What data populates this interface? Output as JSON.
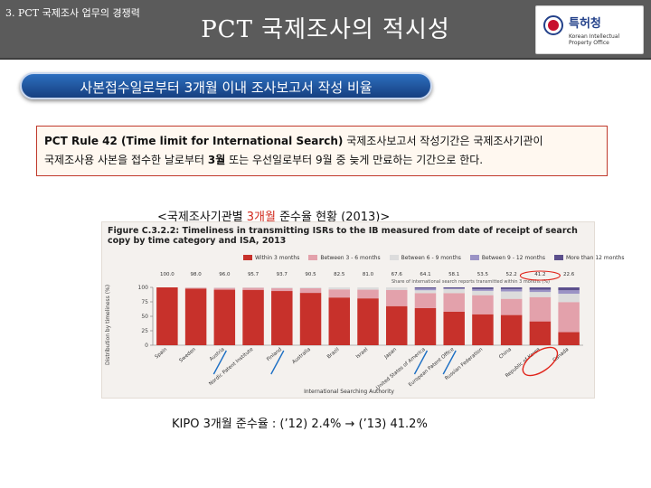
{
  "header": {
    "section": "3. PCT 국제조사 업무의 경쟁력",
    "title": "PCT 국제조사의 적시성",
    "logo_kr": "특허청",
    "logo_en": "Korean Intellectual Property Office"
  },
  "subtitle": "사본접수일로부터 3개월 이내 조사보고서 작성 비율",
  "rule": {
    "bold": "PCT Rule 42 (Time limit for International Search)",
    "line1_rest": " 국제조사보고서 작성기간은 국제조사기관이",
    "line2_a": "국제조사용 사본을 접수한 날로부터 ",
    "line2_bold": "3월",
    "line2_b": " 또는 우선일로부터 9월 중 늦게 만료하는 기간으로 한다."
  },
  "caption": {
    "a": "<국제조사기관별 ",
    "red": "3개월",
    "b": " 준수율 현황 (2013)>"
  },
  "figure": {
    "title": "Figure C.3.2.2: Timeliness in transmitting ISRs to the IB measured from date of receipt of search copy by time category and ISA, 2013",
    "ylabel": "Distribution by timeliness (%)",
    "xlabel": "International Searching Authority",
    "share_note": "Share of international search reports transmitted within 3 months (%)"
  },
  "chart_data": {
    "type": "bar",
    "stacked": true,
    "title": "Figure C.3.2.2: Timeliness in transmitting ISRs to the IB measured from date of receipt of search copy by time category and ISA, 2013",
    "ylabel": "Distribution by timeliness (%)",
    "xlabel": "International Searching Authority",
    "ylim": [
      0,
      100
    ],
    "yticks": [
      0,
      25,
      50,
      75,
      100
    ],
    "categories": [
      "Spain",
      "Sweden",
      "Austria",
      "Nordic Patent Institute",
      "Finland",
      "Australia",
      "Brazil",
      "Israel",
      "Japan",
      "United States of America",
      "European Patent Office",
      "Russian Federation",
      "China",
      "Republic of Korea",
      "Canada"
    ],
    "within_3_months_labels": [
      "100.0",
      "98.0",
      "96.0",
      "95.7",
      "93.7",
      "90.5",
      "82.5",
      "81.0",
      "67.6",
      "64.1",
      "58.1",
      "53.5",
      "52.2",
      "41.2",
      "22.6"
    ],
    "series": [
      {
        "name": "Within 3 months",
        "color": "#c7312b",
        "values": [
          100.0,
          98.0,
          96.0,
          95.7,
          93.7,
          90.5,
          82.5,
          81.0,
          67.6,
          64.1,
          58.1,
          53.5,
          52.2,
          41.2,
          22.6
        ]
      },
      {
        "name": "Between 3 - 6 months",
        "color": "#e3a1ab",
        "values": [
          0.0,
          1.5,
          3.0,
          3.5,
          5.0,
          8.0,
          14.0,
          15.0,
          28.0,
          26.0,
          32.0,
          33.0,
          28.0,
          42.0,
          52.0
        ]
      },
      {
        "name": "Between 6 - 9 months",
        "color": "#dcdcdc",
        "values": [
          0.0,
          0.5,
          1.0,
          0.8,
          1.3,
          1.5,
          3.5,
          4.0,
          4.4,
          4.9,
          6.9,
          7.5,
          12.8,
          8.8,
          14.4
        ]
      },
      {
        "name": "Between 9 - 12 months",
        "color": "#9b93c5",
        "values": [
          0.0,
          0.0,
          0.0,
          0.0,
          0.0,
          0.0,
          0.0,
          0.0,
          0.0,
          3.0,
          1.0,
          3.0,
          4.0,
          4.0,
          6.0
        ]
      },
      {
        "name": "More than 12 months",
        "color": "#5b4f8c",
        "values": [
          0.0,
          0.0,
          0.0,
          0.0,
          0.0,
          0.0,
          0.0,
          0.0,
          0.0,
          2.0,
          2.0,
          3.0,
          3.0,
          4.0,
          5.0
        ]
      }
    ],
    "legend_placement": "top",
    "grid": false
  },
  "footer": "KIPO 3개월 준수율 : (’12) 2.4% → (’13) 41.2%"
}
